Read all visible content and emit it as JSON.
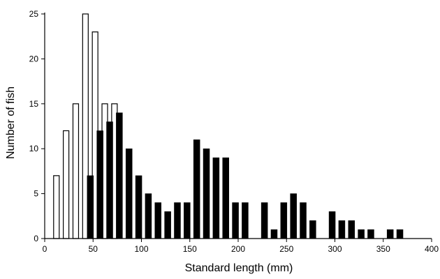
{
  "chart_data": {
    "type": "bar",
    "title": "",
    "xlabel": "Standard length (mm)",
    "ylabel": "Number of fish",
    "xlim": [
      0,
      400
    ],
    "ylim": [
      0,
      25
    ],
    "xticks": [
      0,
      50,
      100,
      150,
      200,
      250,
      300,
      350,
      400
    ],
    "yticks": [
      0,
      5,
      10,
      15,
      20,
      25
    ],
    "grid": false,
    "legend": "none",
    "colors": {
      "open": "#ffffff",
      "filled": "#000000",
      "axis": "#000000"
    },
    "series": [
      {
        "style": "open",
        "x": [
          15,
          25,
          35,
          45,
          55,
          65,
          75
        ],
        "values": [
          7,
          12,
          15,
          25,
          23,
          15,
          15
        ]
      },
      {
        "style": "filled",
        "x": [
          45,
          55,
          65,
          75,
          85,
          95,
          105,
          115,
          125,
          135,
          145,
          155,
          165,
          175,
          185,
          195,
          205,
          225,
          235,
          245,
          255,
          265,
          275,
          295,
          305,
          315,
          325,
          335,
          355,
          365
        ],
        "values": [
          7,
          12,
          13,
          14,
          10,
          7,
          5,
          4,
          3,
          4,
          4,
          11,
          10,
          9,
          9,
          4,
          4,
          4,
          1,
          4,
          5,
          4,
          2,
          3,
          2,
          2,
          1,
          1,
          1,
          1
        ]
      }
    ]
  }
}
